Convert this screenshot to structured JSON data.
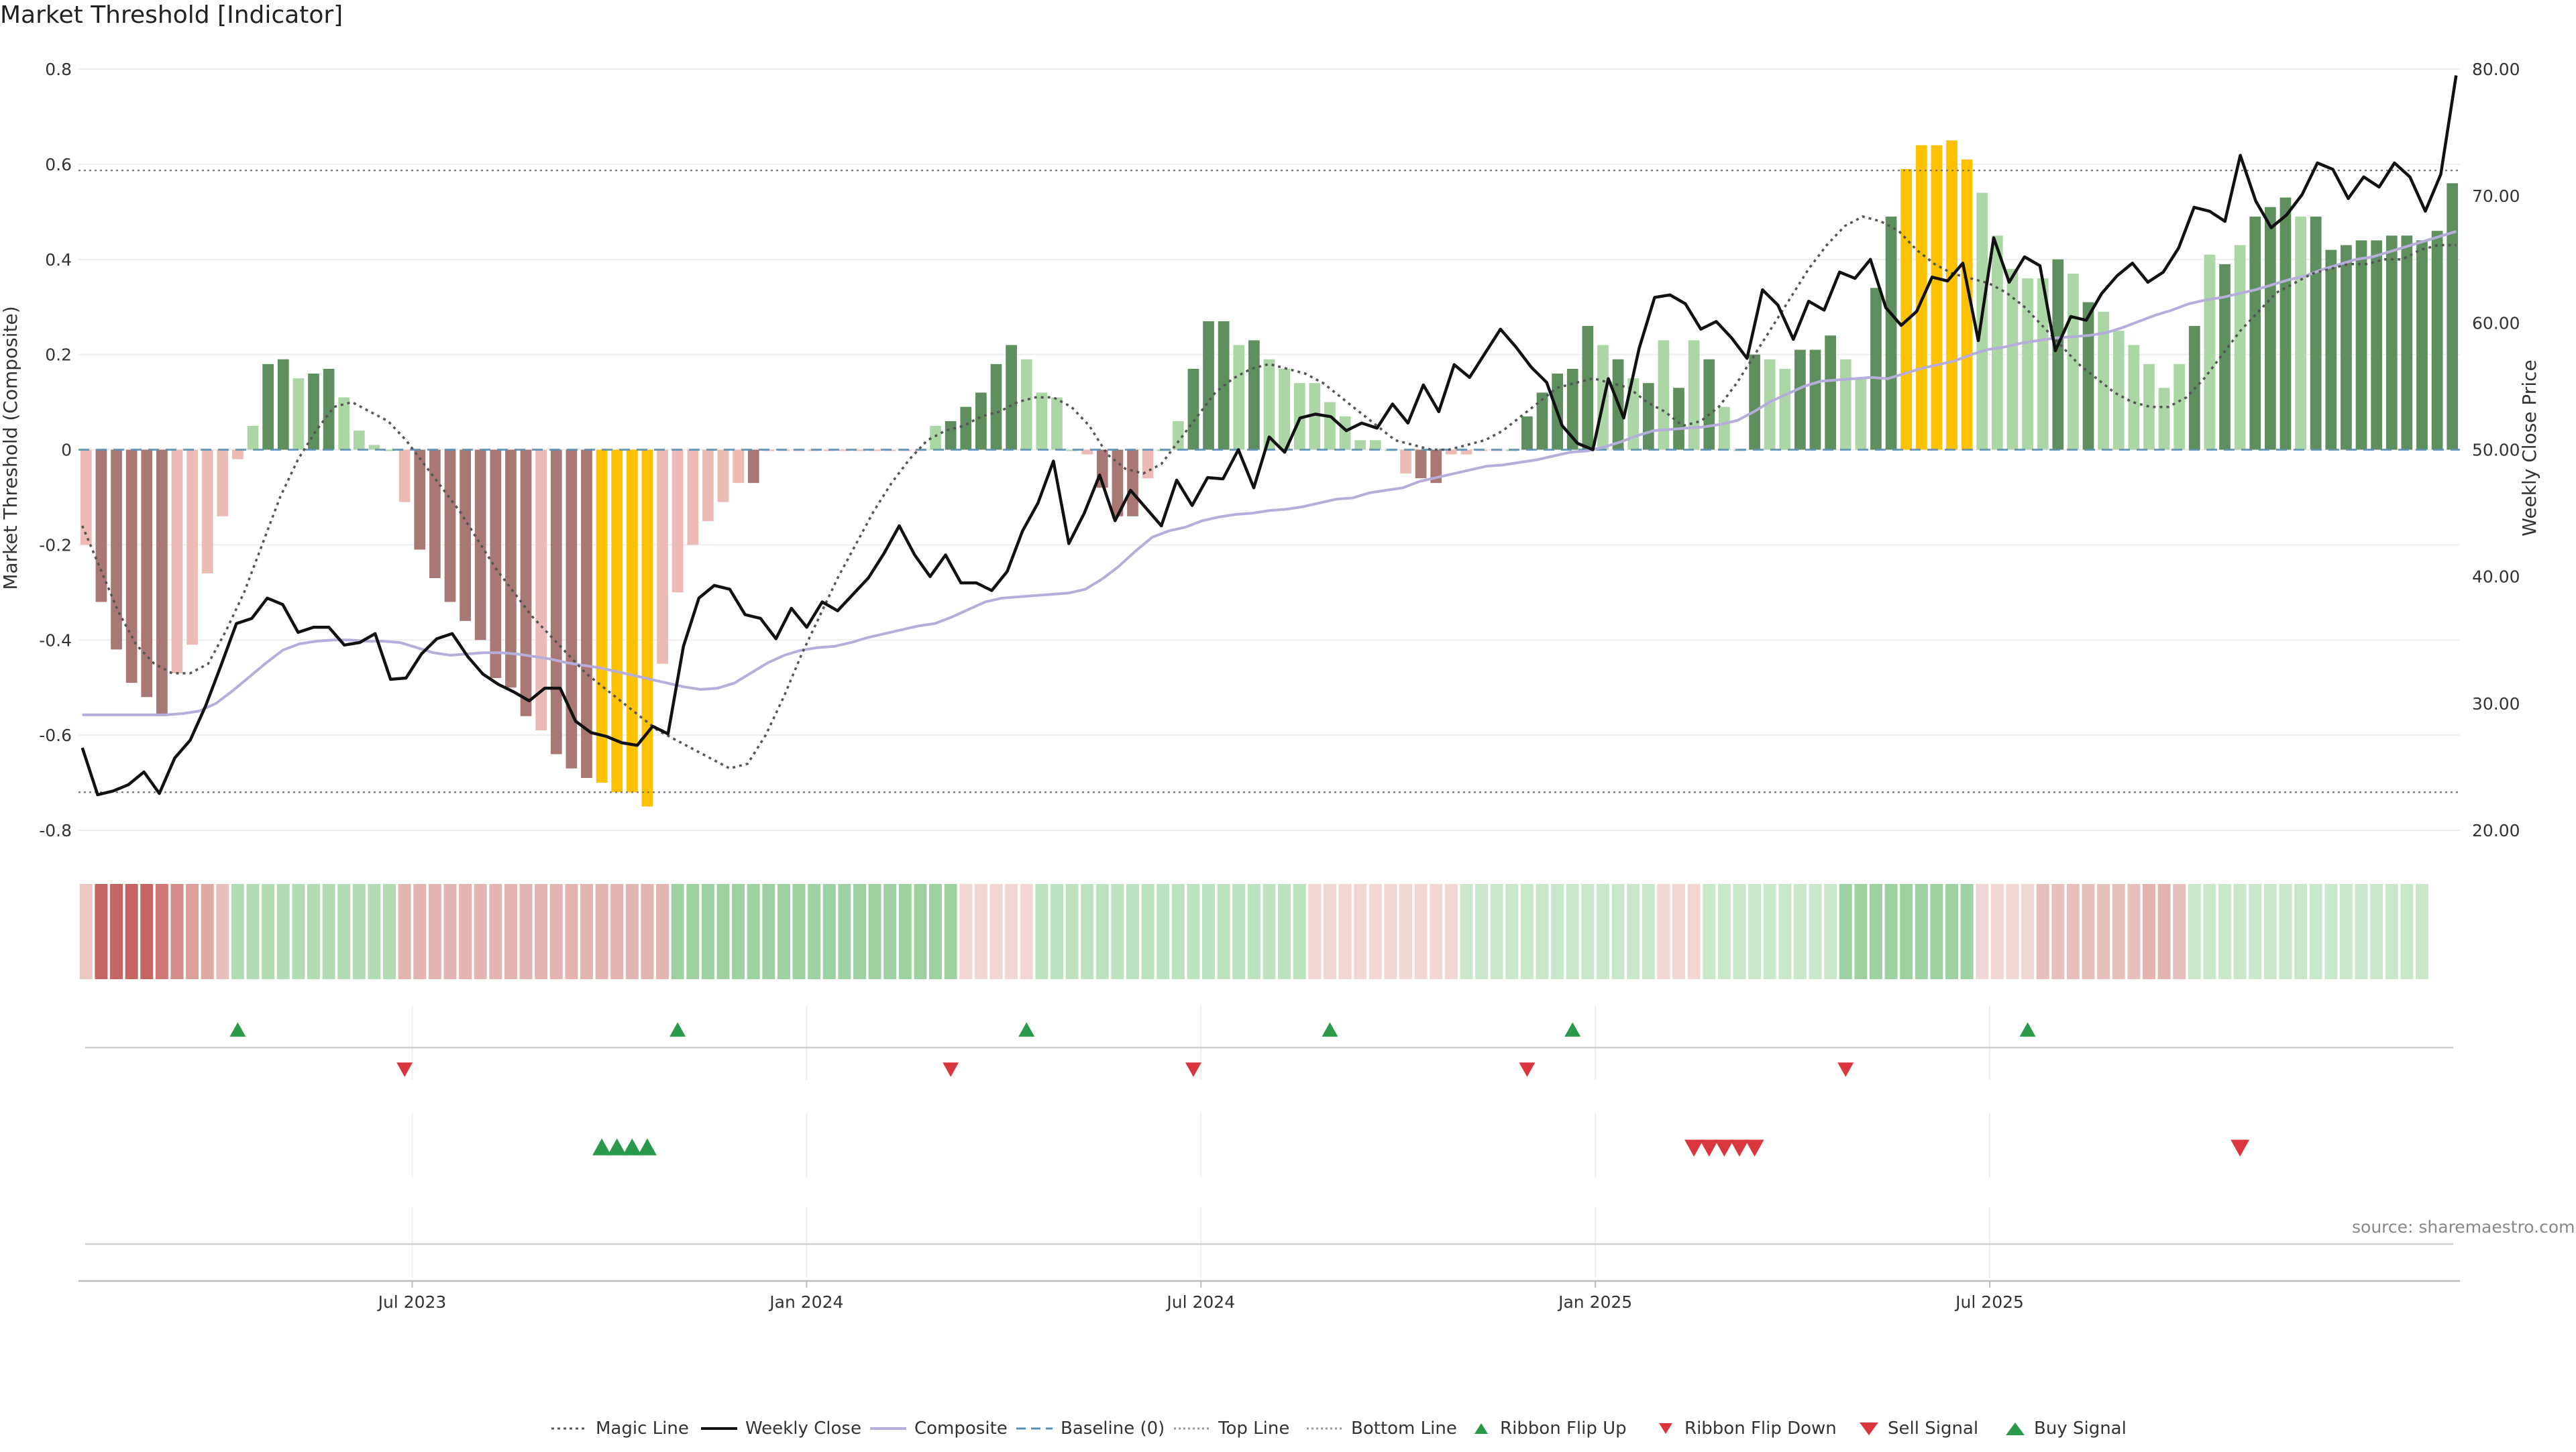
{
  "title": "Market Threshold [Indicator]",
  "source": "source: sharemaestro.com",
  "colors": {
    "dark_green": "#5f8f5f",
    "light_green": "#acd6a6",
    "dark_red": "#a97874",
    "light_red": "#ecbbb5",
    "yellow": "#fcc100",
    "weekly_close": "#111111",
    "composite": "#b6addb",
    "magic": "#555555",
    "baseline": "#5a8fb5",
    "ribbon_up": "#2a9a4a",
    "ribbon_down": "#d9363e"
  },
  "chart_data": {
    "type": "bar",
    "title": "Market Threshold [Indicator]",
    "ylabel": "Market Threshold (Composite)",
    "y2label": "Weekly Close Price",
    "ylim": [
      -0.8,
      0.8
    ],
    "y2lim": [
      20,
      80
    ],
    "yticks": [
      "0.8",
      "0.6",
      "0.4",
      "0.2",
      "0",
      "-0.2",
      "-0.4",
      "-0.6",
      "-0.8"
    ],
    "y2ticks": [
      "80.00",
      "70.00",
      "60.00",
      "50.00",
      "40.00",
      "30.00",
      "20.00"
    ],
    "xticks": [
      "Jul 2023",
      "Jan 2024",
      "Jul 2024",
      "Jan 2025",
      "Jul 2025"
    ],
    "xtick_weeks": [
      22,
      48,
      74,
      100,
      126
    ],
    "top_line": 0.587,
    "bottom_line": -0.72,
    "baseline": 0,
    "bar_values": [
      -0.2,
      -0.32,
      -0.42,
      -0.49,
      -0.52,
      -0.56,
      -0.47,
      -0.41,
      -0.26,
      -0.14,
      -0.02,
      0.05,
      0.18,
      0.19,
      0.15,
      0.16,
      0.17,
      0.11,
      0.04,
      0.01,
      0.0,
      -0.11,
      -0.21,
      -0.27,
      -0.32,
      -0.36,
      -0.4,
      -0.48,
      -0.5,
      -0.56,
      -0.59,
      -0.64,
      -0.67,
      -0.69,
      -0.7,
      -0.72,
      -0.72,
      -0.75,
      -0.45,
      -0.3,
      -0.2,
      -0.15,
      -0.11,
      -0.07,
      -0.07,
      0.0,
      0.0,
      0.0,
      0.0,
      0.0,
      0.0,
      0.0,
      0.0,
      0.0,
      0.0,
      0.0,
      0.05,
      0.06,
      0.09,
      0.12,
      0.18,
      0.22,
      0.19,
      0.12,
      0.11,
      0.0,
      -0.01,
      -0.08,
      -0.14,
      -0.14,
      -0.06,
      0.0,
      0.06,
      0.17,
      0.27,
      0.27,
      0.22,
      0.23,
      0.19,
      0.17,
      0.14,
      0.14,
      0.1,
      0.07,
      0.02,
      0.02,
      0.0,
      -0.05,
      -0.06,
      -0.07,
      -0.01,
      -0.01,
      0.0,
      0.0,
      0.0,
      0.07,
      0.12,
      0.16,
      0.17,
      0.26,
      0.22,
      0.19,
      0.15,
      0.14,
      0.23,
      0.13,
      0.23,
      0.19,
      0.09,
      0.0,
      0.2,
      0.19,
      0.17,
      0.21,
      0.21,
      0.24,
      0.19,
      0.15,
      0.34,
      0.49,
      0.59,
      0.64,
      0.64,
      0.65,
      0.61,
      0.54,
      0.45,
      0.38,
      0.36,
      0.36,
      0.4,
      0.37,
      0.31,
      0.29,
      0.25,
      0.22,
      0.18,
      0.13,
      0.18,
      0.26,
      0.41,
      0.39,
      0.43,
      0.49,
      0.51,
      0.53,
      0.49,
      0.49,
      0.42,
      0.43,
      0.44,
      0.44,
      0.45,
      0.45,
      0.44,
      0.46,
      0.56
    ],
    "bar_colors": [
      "lr",
      "dr",
      "dr",
      "dr",
      "dr",
      "dr",
      "lr",
      "lr",
      "lr",
      "lr",
      "lr",
      "lg",
      "dg",
      "dg",
      "lg",
      "dg",
      "dg",
      "lg",
      "lg",
      "lg",
      "lg",
      "lr",
      "dr",
      "dr",
      "dr",
      "dr",
      "dr",
      "dr",
      "dr",
      "dr",
      "lr",
      "dr",
      "dr",
      "dr",
      "y",
      "y",
      "y",
      "y",
      "lr",
      "lr",
      "lr",
      "lr",
      "lr",
      "lr",
      "dr",
      "lr",
      "lr",
      "lr",
      "lr",
      "lr",
      "lr",
      "lr",
      "lr",
      "lr",
      "lr",
      "lr",
      "lg",
      "dg",
      "dg",
      "dg",
      "dg",
      "dg",
      "lg",
      "lg",
      "lg",
      "lg",
      "lr",
      "dr",
      "dr",
      "dr",
      "lr",
      "lg",
      "lg",
      "dg",
      "dg",
      "dg",
      "lg",
      "dg",
      "lg",
      "lg",
      "lg",
      "lg",
      "lg",
      "lg",
      "lg",
      "lg",
      "lg",
      "lr",
      "dr",
      "dr",
      "lr",
      "lr",
      "lr",
      "lr",
      "lg",
      "dg",
      "dg",
      "dg",
      "dg",
      "dg",
      "lg",
      "dg",
      "lg",
      "dg",
      "lg",
      "dg",
      "lg",
      "dg",
      "lg",
      "lg",
      "dg",
      "lg",
      "lg",
      "dg",
      "dg",
      "dg",
      "lg",
      "lg",
      "dg",
      "dg",
      "y",
      "y",
      "y",
      "y",
      "y",
      "lg",
      "lg",
      "lg",
      "lg",
      "lg",
      "dg",
      "lg",
      "dg",
      "lg",
      "lg",
      "lg",
      "lg",
      "lg",
      "lg",
      "dg",
      "lg",
      "dg",
      "lg",
      "dg",
      "dg",
      "dg",
      "lg",
      "dg",
      "dg",
      "dg",
      "dg",
      "dg",
      "dg",
      "dg",
      "dg",
      "dg",
      "dg",
      "y"
    ],
    "weekly_close": [
      26.5,
      22.8,
      23.1,
      23.6,
      24.6,
      22.9,
      25.7,
      27.1,
      29.8,
      33.0,
      36.3,
      36.7,
      38.3,
      37.8,
      35.6,
      36.0,
      36.0,
      34.6,
      34.8,
      35.5,
      31.9,
      32.0,
      33.9,
      35.1,
      35.5,
      33.7,
      32.3,
      31.5,
      30.9,
      30.2,
      31.2,
      31.2,
      28.6,
      27.7,
      27.4,
      26.9,
      26.7,
      28.2,
      27.6,
      34.5,
      38.3,
      39.3,
      39.0,
      37.0,
      36.7,
      35.1,
      37.5,
      36.0,
      38.0,
      37.3,
      38.6,
      39.9,
      41.8,
      44.0,
      41.7,
      40.0,
      41.7,
      39.5,
      39.5,
      38.9,
      40.4,
      43.6,
      45.8,
      49.1,
      42.6,
      45.0,
      48.0,
      44.4,
      46.8,
      45.4,
      44.0,
      47.6,
      45.6,
      47.8,
      47.7,
      50.0,
      47.0,
      51.0,
      49.8,
      52.5,
      52.8,
      52.6,
      51.5,
      52.1,
      51.7,
      53.6,
      52.1,
      55.1,
      53.0,
      56.7,
      55.7,
      57.6,
      59.5,
      58.1,
      56.5,
      55.3,
      51.9,
      50.5,
      50.0,
      55.6,
      52.5,
      58.0,
      62.0,
      62.2,
      61.5,
      59.5,
      60.1,
      58.8,
      57.2,
      62.6,
      61.4,
      58.7,
      61.7,
      61.0,
      64.0,
      63.5,
      65.0,
      61.2,
      59.8,
      60.9,
      63.6,
      63.3,
      64.7,
      58.6,
      66.7,
      63.2,
      65.2,
      64.5,
      57.8,
      60.5,
      60.2,
      62.3,
      63.7,
      64.7,
      63.2,
      64.0,
      65.9,
      69.1,
      68.8,
      68.0,
      73.2,
      69.6,
      67.5,
      68.5,
      70.1,
      72.6,
      72.1,
      69.8,
      71.5,
      70.7,
      72.6,
      71.5,
      68.8,
      71.7,
      79.5
    ],
    "composite_price": [
      29.1,
      29.1,
      29.1,
      29.1,
      29.1,
      29.1,
      29.2,
      29.4,
      30.0,
      31.0,
      32.1,
      33.2,
      34.2,
      34.7,
      34.9,
      35.0,
      35.0,
      34.9,
      34.9,
      34.8,
      34.4,
      34.0,
      33.8,
      33.9,
      34.0,
      34.0,
      33.9,
      33.7,
      33.5,
      33.2,
      33.0,
      32.8,
      32.5,
      32.2,
      31.9,
      31.6,
      31.3,
      31.1,
      31.2,
      31.6,
      32.4,
      33.2,
      33.8,
      34.2,
      34.4,
      34.5,
      34.8,
      35.2,
      35.5,
      35.8,
      36.1,
      36.3,
      36.8,
      37.4,
      38.0,
      38.3,
      38.4,
      38.5,
      38.6,
      38.7,
      39.0,
      39.8,
      40.8,
      42.0,
      43.1,
      43.6,
      43.9,
      44.4,
      44.7,
      44.9,
      45.0,
      45.2,
      45.3,
      45.5,
      45.8,
      46.1,
      46.2,
      46.6,
      46.8,
      47.0,
      47.5,
      47.8,
      48.1,
      48.4,
      48.7,
      48.8,
      49.0,
      49.2,
      49.5,
      49.8,
      49.9,
      50.2,
      50.6,
      51.1,
      51.5,
      51.6,
      51.7,
      51.8,
      52.0,
      52.3,
      53.0,
      53.8,
      54.4,
      55.0,
      55.4,
      55.5,
      55.6,
      55.7,
      55.6,
      56.0,
      56.4,
      56.7,
      57.0,
      57.5,
      57.9,
      58.1,
      58.4,
      58.6,
      58.8,
      58.9,
      59.0,
      59.2,
      59.6,
      60.1,
      60.6,
      61.0,
      61.5,
      61.8,
      62.0,
      62.3,
      62.6,
      63.0,
      63.4,
      63.7,
      64.2,
      64.6,
      65.0,
      65.2,
      65.6,
      66.0,
      66.4,
      66.8,
      67.2
    ],
    "magic_line": [
      -0.16,
      -0.25,
      -0.34,
      -0.41,
      -0.45,
      -0.47,
      -0.47,
      -0.45,
      -0.38,
      -0.3,
      -0.2,
      -0.1,
      -0.02,
      0.04,
      0.09,
      0.1,
      0.08,
      0.06,
      0.02,
      -0.03,
      -0.08,
      -0.13,
      -0.19,
      -0.25,
      -0.3,
      -0.35,
      -0.39,
      -0.43,
      -0.47,
      -0.5,
      -0.53,
      -0.56,
      -0.59,
      -0.61,
      -0.63,
      -0.65,
      -0.67,
      -0.66,
      -0.6,
      -0.52,
      -0.43,
      -0.35,
      -0.27,
      -0.2,
      -0.13,
      -0.07,
      -0.02,
      0.02,
      0.04,
      0.05,
      0.07,
      0.08,
      0.1,
      0.11,
      0.11,
      0.09,
      0.05,
      -0.01,
      -0.04,
      -0.05,
      -0.03,
      0.02,
      0.07,
      0.12,
      0.15,
      0.17,
      0.18,
      0.17,
      0.16,
      0.14,
      0.11,
      0.08,
      0.05,
      0.02,
      0.01,
      0.0,
      0.0,
      0.01,
      0.02,
      0.04,
      0.07,
      0.1,
      0.13,
      0.14,
      0.15,
      0.14,
      0.13,
      0.1,
      0.08,
      0.05,
      0.06,
      0.09,
      0.14,
      0.2,
      0.26,
      0.32,
      0.38,
      0.43,
      0.47,
      0.49,
      0.48,
      0.46,
      0.42,
      0.39,
      0.37,
      0.36,
      0.35,
      0.33,
      0.3,
      0.26,
      0.22,
      0.18,
      0.15,
      0.12,
      0.1,
      0.09,
      0.09,
      0.11,
      0.15,
      0.2,
      0.25,
      0.29,
      0.33,
      0.35,
      0.37,
      0.38,
      0.39,
      0.39,
      0.4,
      0.4,
      0.42,
      0.43,
      0.43
    ],
    "ribbon": [
      "#ecc8c5",
      "#c66662",
      "#c66662",
      "#c66662",
      "#c66662",
      "#cf7a76",
      "#d58d89",
      "#dc9f9b",
      "#dfa9a6",
      "#e7c0bd",
      "#b2dcb4",
      "#b2dcb4",
      "#b2dcb4",
      "#b2dcb4",
      "#b2dcb4",
      "#b2dcb4",
      "#b2dcb4",
      "#b2dcb4",
      "#b2dcb4",
      "#b2dcb4",
      "#b2dcb4",
      "#e3b4b1",
      "#e3b4b1",
      "#e3b4b1",
      "#e3b4b1",
      "#e3b4b1",
      "#e3b4b1",
      "#e3b4b1",
      "#e3b4b1",
      "#e3b4b1",
      "#e3b4b1",
      "#e3b4b1",
      "#e3b4b1",
      "#e3b4b1",
      "#e3b4b1",
      "#e3b4b1",
      "#e3b4b1",
      "#e3b4b1",
      "#e3b4b1",
      "#9ed1a1",
      "#9ed1a1",
      "#9ed1a1",
      "#9ed1a1",
      "#9ed1a1",
      "#9ed1a1",
      "#9ed1a1",
      "#9ed1a1",
      "#9ed1a1",
      "#9ed1a1",
      "#9ed1a1",
      "#9ed1a1",
      "#9ed1a1",
      "#9ed1a1",
      "#9ed1a1",
      "#9ed1a1",
      "#9ed1a1",
      "#9ed1a1",
      "#9ed1a1",
      "#f2d6d4",
      "#f2d6d4",
      "#f2d6d4",
      "#f2d6d4",
      "#f2d6d4",
      "#bde2bf",
      "#bde2bf",
      "#bde2bf",
      "#bde2bf",
      "#bde2bf",
      "#bde2bf",
      "#bde2bf",
      "#bde2bf",
      "#bde2bf",
      "#bde2bf",
      "#bde2bf",
      "#bde2bf",
      "#bde2bf",
      "#bde2bf",
      "#bde2bf",
      "#bde2bf",
      "#bde2bf",
      "#bde2bf",
      "#f2d6d4",
      "#f2d6d4",
      "#f2d6d4",
      "#f2d6d4",
      "#f2d6d4",
      "#f2d6d4",
      "#f2d6d4",
      "#f2d6d4",
      "#f2d6d4",
      "#f2d6d4",
      "#c9e8cb",
      "#c9e8cb",
      "#c9e8cb",
      "#c9e8cb",
      "#c9e8cb",
      "#c9e8cb",
      "#c9e8cb",
      "#c9e8cb",
      "#c9e8cb",
      "#c9e8cb",
      "#c9e8cb",
      "#c9e8cb",
      "#c9e8cb",
      "#f2d6d4",
      "#f2d6d4",
      "#f2d6d4",
      "#c9e8cb",
      "#c9e8cb",
      "#c9e8cb",
      "#c9e8cb",
      "#c9e8cb",
      "#c9e8cb",
      "#c9e8cb",
      "#c9e8cb",
      "#c9e8cb",
      "#9ed1a1",
      "#9ed1a1",
      "#9ed1a1",
      "#9ed1a1",
      "#9ed1a1",
      "#9ed1a1",
      "#9ed1a1",
      "#9ed1a1",
      "#9ed1a1",
      "#f2d6d4",
      "#f2d6d4",
      "#f2d6d4",
      "#f2d6d4",
      "#e7c0bd",
      "#e7c0bd",
      "#e7c0bd",
      "#e7c0bd",
      "#e7c0bd",
      "#e7c0bd",
      "#e7c0bd",
      "#e3b4b1",
      "#e3b4b1",
      "#e7c0bd",
      "#c9e8cb",
      "#c9e8cb",
      "#c9e8cb",
      "#c9e8cb",
      "#c9e8cb",
      "#c9e8cb",
      "#c9e8cb",
      "#c9e8cb",
      "#c9e8cb",
      "#c9e8cb",
      "#c9e8cb",
      "#c9e8cb",
      "#c9e8cb",
      "#c9e8cb",
      "#c9e8cb",
      "#c9e8cb"
    ],
    "ribbon_flip_up_weeks": [
      10,
      39,
      62,
      82,
      98,
      128
    ],
    "ribbon_flip_down_weeks": [
      21,
      57,
      73,
      95,
      116
    ],
    "buy_signal_weeks": [
      34,
      35,
      36,
      37
    ],
    "sell_signal_weeks": [
      106,
      107,
      108,
      109,
      110,
      142
    ]
  },
  "legend": [
    {
      "label": "Magic Line",
      "icon": "dotted-line"
    },
    {
      "label": "Weekly Close",
      "icon": "solid-line"
    },
    {
      "label": "Composite",
      "icon": "lavender-line"
    },
    {
      "label": "Baseline (0)",
      "icon": "dashed-line"
    },
    {
      "label": "Top Line",
      "icon": "dotted-grey-line"
    },
    {
      "label": "Bottom Line",
      "icon": "dotted-grey-line"
    },
    {
      "label": "Ribbon Flip Up",
      "icon": "triangle-up-green"
    },
    {
      "label": "Ribbon Flip Down",
      "icon": "triangle-down-red"
    },
    {
      "label": "Sell Signal",
      "icon": "triangle-down-red-large"
    },
    {
      "label": "Buy Signal",
      "icon": "triangle-up-green-large"
    }
  ]
}
